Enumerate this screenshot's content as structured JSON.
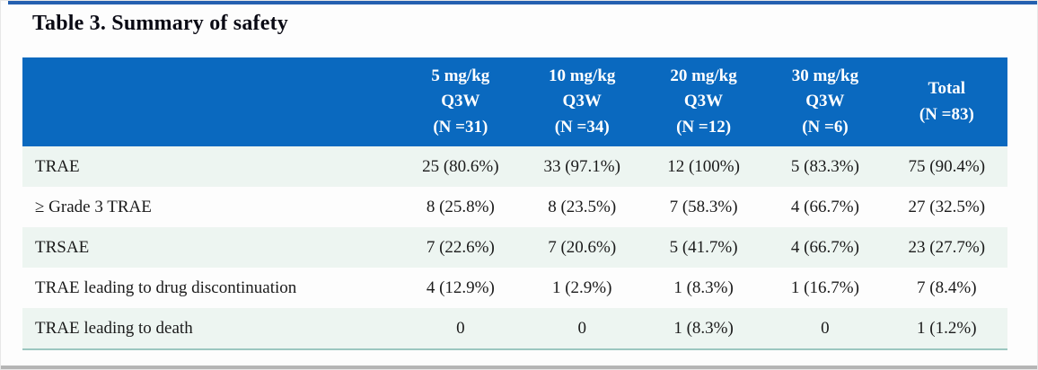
{
  "page": {
    "title": "Table 3. Summary of safety"
  },
  "table": {
    "header": {
      "row_label_header": "",
      "columns": [
        "5 mg/kg\nQ3W\n(N =31)",
        "10 mg/kg\nQ3W\n(N =34)",
        "20 mg/kg\nQ3W\n(N =12)",
        "30 mg/kg\nQ3W\n(N =6)",
        "Total\n(N =83)"
      ]
    },
    "rows": [
      {
        "label": "TRAE",
        "values": [
          "25 (80.6%)",
          "33 (97.1%)",
          "12 (100%)",
          "5 (83.3%)",
          "75 (90.4%)"
        ]
      },
      {
        "label": "≥ Grade 3 TRAE",
        "values": [
          "8 (25.8%)",
          "8 (23.5%)",
          "7 (58.3%)",
          "4 (66.7%)",
          "27 (32.5%)"
        ]
      },
      {
        "label": "TRSAE",
        "values": [
          "7 (22.6%)",
          "7 (20.6%)",
          "5 (41.7%)",
          "4 (66.7%)",
          "23 (27.7%)"
        ]
      },
      {
        "label": "TRAE leading to drug discontinuation",
        "values": [
          "4 (12.9%)",
          "1 (2.9%)",
          "1 (8.3%)",
          "1 (16.7%)",
          "7 (8.4%)"
        ]
      },
      {
        "label": "TRAE leading to death",
        "values": [
          "0",
          "0",
          "1 (8.3%)",
          "0",
          "1 (1.2%)"
        ]
      }
    ]
  },
  "colors": {
    "header_bg": "#0a69bf",
    "header_text": "#ffffff",
    "stripe_bg": "#edf5f1",
    "bottom_rule": "#9cc7c0",
    "title_text": "#0a0a14",
    "body_text": "#1b1b1b",
    "top_bar": "#2460b0",
    "bottom_bar": "#b5b5b5"
  }
}
